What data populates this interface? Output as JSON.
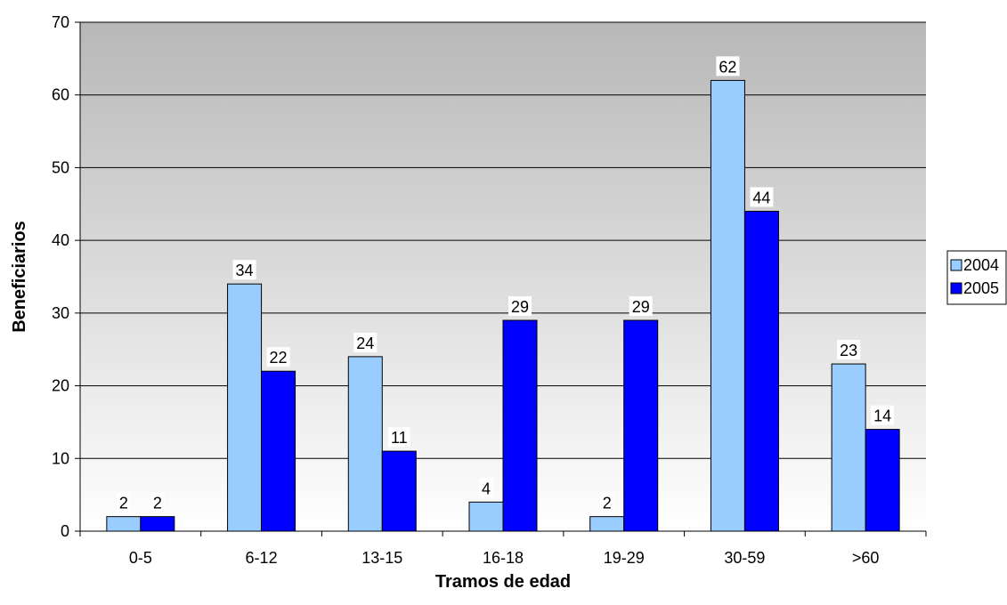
{
  "chart_data": {
    "type": "bar",
    "categories": [
      "0-5",
      "6-12",
      "13-15",
      "16-18",
      "19-29",
      "30-59",
      ">60"
    ],
    "series": [
      {
        "name": "2004",
        "values": [
          2,
          34,
          24,
          4,
          2,
          62,
          23
        ],
        "color": "#99ccff"
      },
      {
        "name": "2005",
        "values": [
          2,
          22,
          11,
          29,
          29,
          44,
          14
        ],
        "color": "#0000ff"
      }
    ],
    "xlabel": "Tramos de edad",
    "ylabel": "Beneficiarios",
    "ylim": [
      0,
      70
    ],
    "yticks": [
      0,
      10,
      20,
      30,
      40,
      50,
      60,
      70
    ],
    "grid": true,
    "legend_position": "right",
    "data_labels": true,
    "plot_background": "gradient-gray"
  }
}
